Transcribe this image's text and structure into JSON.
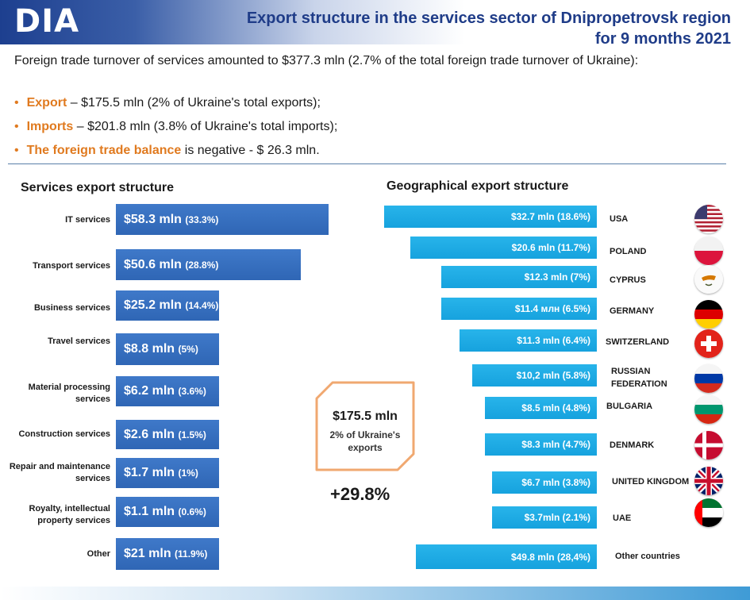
{
  "header": {
    "logo": "DIA",
    "title_line1": "Export structure in the services sector of Dnipropetrovsk region",
    "title_line2": "for 9 months 2021"
  },
  "intro": "Foreign trade turnover of services amounted to $377.3 mln (2.7% of the total foreign trade turnover of Ukraine):",
  "bullets": [
    {
      "label": "Export",
      "text": " – $175.5 mln (2% of Ukraine's total exports);"
    },
    {
      "label": "Imports",
      "text": " – $201.8 mln (3.8% of Ukraine's total imports);"
    },
    {
      "label": "The foreign trade balance",
      "text": " is negative - $ 26.3 mln."
    }
  ],
  "callout": {
    "value": "$175.5 mln",
    "line1": "2% of Ukraine's",
    "line2": "exports",
    "growth": "+29.8%"
  },
  "colors": {
    "title": "#1f3c88",
    "accent": "#e07a1f",
    "left_bar": "#2f66b5",
    "right_bar": "#16a2de"
  },
  "chart_data": [
    {
      "type": "bar",
      "orientation": "horizontal",
      "title": "Services export structure",
      "categories": [
        "IT services",
        "Transport services",
        "Business services",
        "Travel services",
        "Material processing services",
        "Construction services",
        "Repair and maintenance services",
        "Royalty, intellectual property services",
        "Other"
      ],
      "values": [
        58.3,
        50.6,
        25.2,
        8.8,
        6.2,
        2.6,
        1.7,
        1.1,
        21
      ],
      "shares": [
        33.3,
        28.8,
        14.4,
        5,
        3.6,
        1.5,
        1,
        0.6,
        11.9
      ],
      "amount_labels": [
        "$58.3 mln",
        "$50.6 mln",
        "$25.2 mln",
        "$8.8 mln",
        "$6.2 mln",
        "$2.6 mln",
        "$1.7 mln",
        "$1.1 mln",
        "$21 mln"
      ],
      "share_labels": [
        "(33.3%)",
        "(28.8%)",
        "(14.4%)",
        "(5%)",
        "(3.6%)",
        "(1.5%)",
        "(1%)",
        "(0.6%)",
        "(11.9%)"
      ]
    },
    {
      "type": "bar",
      "orientation": "horizontal",
      "title": "Geographical export structure",
      "categories": [
        "USA",
        "POLAND",
        "CYPRUS",
        "GERMANY",
        "SWITZERLAND",
        "RUSSIAN FEDERATION",
        "BULGARIA",
        "DENMARK",
        "UNITED KINGDOM",
        "UAE",
        "Other countries"
      ],
      "values": [
        32.7,
        20.6,
        12.3,
        11.4,
        11.3,
        10.2,
        8.5,
        8.3,
        6.7,
        3.7,
        49.8
      ],
      "shares": [
        18.6,
        11.7,
        7,
        6.5,
        6.4,
        5.8,
        4.8,
        4.7,
        3.8,
        2.1,
        28.4
      ],
      "value_labels": [
        "$32.7 mln (18.6%)",
        "$20.6 mln (11.7%)",
        "$12.3 mln (7%)",
        "$11.4 млн (6.5%)",
        "$11.3 mln (6.4%)",
        "$10,2 mln (5.8%)",
        "$8.5 mln (4.8%)",
        "$8.3 mln (4.7%)",
        "$6.7 mln (3.8%)",
        "$3.7mln (2.1%)",
        "$49.8 mln (28,4%)"
      ],
      "flag_icons": [
        "usa-flag-icon",
        "poland-flag-icon",
        "cyprus-flag-icon",
        "germany-flag-icon",
        "switzerland-flag-icon",
        "russia-flag-icon",
        "bulgaria-flag-icon",
        "denmark-flag-icon",
        "uk-flag-icon",
        "uae-flag-icon"
      ]
    }
  ]
}
